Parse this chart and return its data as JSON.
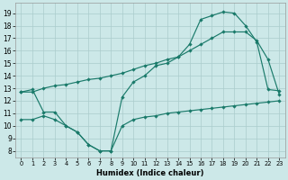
{
  "bg_color": "#cce8e8",
  "grid_color": "#aacccc",
  "line_color": "#1a7a6a",
  "xlabel": "Humidex (Indice chaleur)",
  "x_ticks": [
    0,
    1,
    2,
    3,
    4,
    5,
    6,
    7,
    8,
    9,
    10,
    11,
    12,
    13,
    14,
    15,
    16,
    17,
    18,
    19,
    20,
    21,
    22,
    23
  ],
  "y_ticks": [
    8,
    9,
    10,
    11,
    12,
    13,
    14,
    15,
    16,
    17,
    18,
    19
  ],
  "ylim": [
    7.5,
    19.8
  ],
  "xlim": [
    -0.5,
    23.5
  ],
  "line1_x": [
    0,
    1,
    2,
    3,
    4,
    5,
    6,
    7,
    8,
    9,
    10,
    11,
    12,
    13,
    14,
    15,
    16,
    17,
    18,
    19,
    20,
    21,
    22,
    23
  ],
  "line1_y": [
    12.7,
    12.9,
    11.1,
    11.1,
    10.0,
    9.5,
    8.5,
    8.0,
    8.0,
    12.3,
    13.5,
    14.0,
    14.8,
    15.0,
    15.5,
    16.5,
    18.5,
    18.8,
    19.1,
    19.0,
    18.0,
    16.7,
    12.9,
    12.8
  ],
  "line2_x": [
    0,
    1,
    2,
    3,
    4,
    5,
    6,
    7,
    8,
    9,
    10,
    11,
    12,
    13,
    14,
    15,
    16,
    17,
    18,
    19,
    20,
    21,
    22,
    23
  ],
  "line2_y": [
    12.7,
    12.7,
    13.0,
    13.2,
    13.3,
    13.5,
    13.7,
    13.8,
    14.0,
    14.2,
    14.5,
    14.8,
    15.0,
    15.3,
    15.5,
    16.0,
    16.5,
    17.0,
    17.5,
    17.5,
    17.5,
    16.8,
    15.3,
    12.5
  ],
  "line3_x": [
    0,
    1,
    2,
    3,
    4,
    5,
    6,
    7,
    8,
    9,
    10,
    11,
    12,
    13,
    14,
    15,
    16,
    17,
    18,
    19,
    20,
    21,
    22,
    23
  ],
  "line3_y": [
    10.5,
    10.5,
    10.8,
    10.5,
    10.0,
    9.5,
    8.5,
    8.0,
    8.0,
    10.0,
    10.5,
    10.7,
    10.8,
    11.0,
    11.1,
    11.2,
    11.3,
    11.4,
    11.5,
    11.6,
    11.7,
    11.8,
    11.9,
    12.0
  ]
}
